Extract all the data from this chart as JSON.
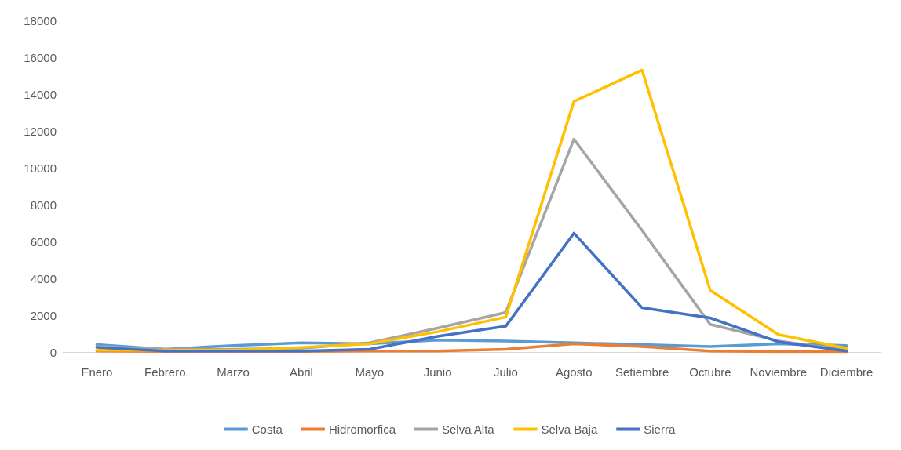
{
  "chart_data": {
    "type": "line",
    "categories": [
      "Enero",
      "Febrero",
      "Marzo",
      "Abril",
      "Mayo",
      "Junio",
      "Julio",
      "Agosto",
      "Setiembre",
      "Octubre",
      "Noviembre",
      "Diciembre"
    ],
    "series": [
      {
        "name": "Costa",
        "color": "#5b9bd5",
        "values": [
          400,
          150,
          350,
          500,
          450,
          650,
          600,
          500,
          400,
          300,
          450,
          350
        ]
      },
      {
        "name": "Hidromorfica",
        "color": "#ed7d31",
        "values": [
          50,
          30,
          30,
          30,
          50,
          50,
          150,
          450,
          300,
          50,
          20,
          20
        ]
      },
      {
        "name": "Selva Alta",
        "color": "#a5a5a5",
        "values": [
          300,
          150,
          150,
          200,
          500,
          1300,
          2150,
          11550,
          6600,
          1500,
          600,
          100
        ]
      },
      {
        "name": "Selva Baja",
        "color": "#ffc000",
        "values": [
          100,
          100,
          100,
          250,
          450,
          1100,
          1900,
          13600,
          15300,
          3350,
          950,
          200
        ]
      },
      {
        "name": "Sierra",
        "color": "#4472c4",
        "values": [
          250,
          50,
          50,
          50,
          150,
          850,
          1400,
          6450,
          2400,
          1850,
          550,
          50
        ]
      }
    ],
    "ylim": [
      0,
      18000
    ],
    "yticks": [
      0,
      2000,
      4000,
      6000,
      8000,
      10000,
      12000,
      14000,
      16000,
      18000
    ],
    "grid": false,
    "legend": "bottom",
    "marker": "none",
    "line_style": "solid"
  }
}
